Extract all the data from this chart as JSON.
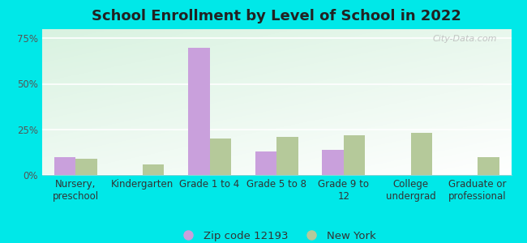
{
  "title": "School Enrollment by Level of School in 2022",
  "categories": [
    "Nursery,\npreschool",
    "Kindergarten",
    "Grade 1 to 4",
    "Grade 5 to 8",
    "Grade 9 to\n12",
    "College\nundergrad",
    "Graduate or\nprofessional"
  ],
  "zip_values": [
    10.0,
    0.0,
    70.0,
    13.0,
    14.0,
    0.0,
    0.0
  ],
  "ny_values": [
    9.0,
    6.0,
    20.0,
    21.0,
    22.0,
    23.0,
    10.0
  ],
  "zip_color": "#c9a0dc",
  "ny_color": "#b5c99a",
  "ylim": [
    0,
    80
  ],
  "yticks": [
    0,
    25,
    50,
    75
  ],
  "ytick_labels": [
    "0%",
    "25%",
    "50%",
    "75%"
  ],
  "background_outer": "#00e8e8",
  "zip_label": "Zip code 12193",
  "ny_label": "New York",
  "title_fontsize": 13,
  "tick_fontsize": 8.5,
  "legend_fontsize": 9.5,
  "bar_width": 0.32,
  "watermark": "City-Data.com"
}
